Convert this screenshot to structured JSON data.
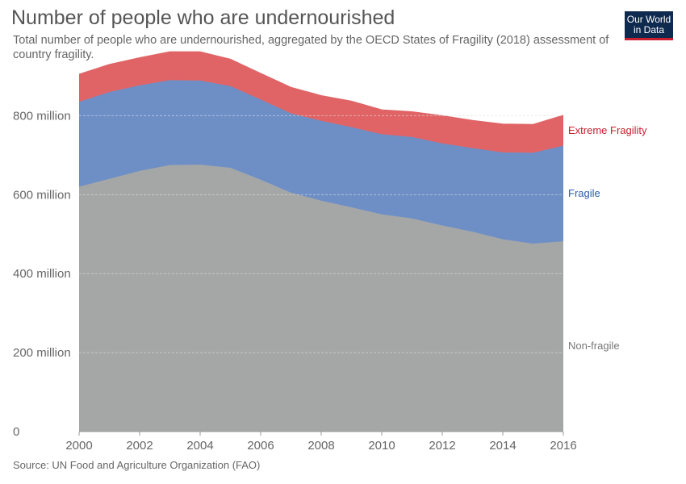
{
  "header": {
    "title": "Number of people who are undernourished",
    "subtitle": "Total number of people who are undernourished, aggregated by the OECD States of Fragility (2018) assessment of country fragility.",
    "logo_line1": "Our World",
    "logo_line2": "in Data"
  },
  "footer": {
    "source": "Source: UN Food and Agriculture Organization (FAO)"
  },
  "colors": {
    "logo_bg": "#0e2a4e",
    "logo_accent": "#c8202f"
  },
  "chart_data": {
    "type": "area",
    "stacked": true,
    "x": [
      2000,
      2001,
      2002,
      2003,
      2004,
      2005,
      2006,
      2007,
      2008,
      2009,
      2010,
      2011,
      2012,
      2013,
      2014,
      2015,
      2016
    ],
    "series": [
      {
        "name": "Non-fragile",
        "color": "#a5a7a7",
        "label_color": "#777777",
        "values": [
          620,
          640,
          660,
          675,
          676,
          668,
          638,
          605,
          585,
          568,
          550,
          540,
          522,
          506,
          487,
          476,
          482
        ]
      },
      {
        "name": "Fragile",
        "color": "#6e8fc6",
        "label_color": "#2b5ca8",
        "values": [
          215,
          220,
          217,
          215,
          213,
          207,
          203,
          201,
          202,
          203,
          203,
          206,
          208,
          212,
          220,
          230,
          242
        ]
      },
      {
        "name": "Extreme Fragility",
        "color": "#e06466",
        "label_color": "#c8202f",
        "values": [
          70,
          70,
          70,
          72,
          73,
          68,
          66,
          66,
          64,
          66,
          62,
          64,
          70,
          70,
          72,
          72,
          77
        ]
      }
    ],
    "ylim": [
      0,
      950
    ],
    "y_ticks": [
      0,
      200,
      400,
      600,
      800
    ],
    "y_tick_labels": [
      "0",
      "200 million",
      "400 million",
      "600 million",
      "800 million"
    ],
    "x_ticks": [
      2000,
      2002,
      2004,
      2006,
      2008,
      2010,
      2012,
      2014,
      2016
    ],
    "x_tick_labels": [
      "2000",
      "2002",
      "2004",
      "2006",
      "2008",
      "2010",
      "2012",
      "2014",
      "2016"
    ],
    "grid": true,
    "legend": "inline-right"
  }
}
